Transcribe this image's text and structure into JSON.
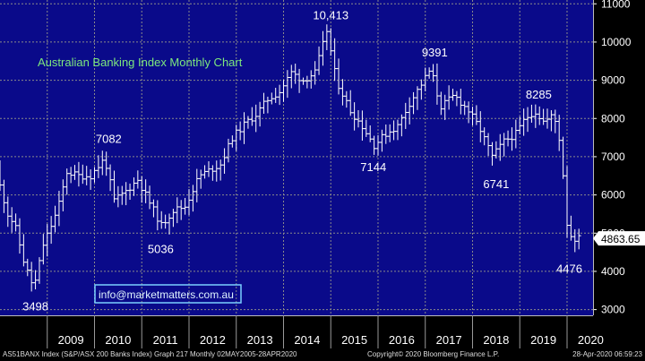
{
  "chart_data": {
    "type": "ohlc",
    "title": "Australian Banking Index Monthly Chart",
    "watermark": "info@marketmatters.com.au",
    "y_ticks": [
      3000,
      4000,
      5000,
      6000,
      7000,
      8000,
      9000,
      10000,
      11000
    ],
    "y_tick_labels": [
      "3000",
      "4000",
      "5000",
      "6000",
      "7000",
      "8000",
      "9000",
      "10000",
      "11000"
    ],
    "ylim": [
      2850,
      11100
    ],
    "years": [
      "2009",
      "2010",
      "2011",
      "2012",
      "2013",
      "2014",
      "2015",
      "2016",
      "2017",
      "2018",
      "2019",
      "2020"
    ],
    "last_price": 4863.65,
    "last_price_label": "4863.65",
    "annotations": [
      {
        "label": "10,413",
        "year": 2015.0,
        "value": 10413
      },
      {
        "label": "9391",
        "year": 2017.2,
        "value": 9391
      },
      {
        "label": "8285",
        "year": 2019.4,
        "value": 8285
      },
      {
        "label": "7082",
        "year": 2010.3,
        "value": 7082
      },
      {
        "label": "7144",
        "year": 2015.9,
        "value": 7144
      },
      {
        "label": "6741",
        "year": 2018.5,
        "value": 6741
      },
      {
        "label": "5036",
        "year": 2011.4,
        "value": 5036
      },
      {
        "label": "3498",
        "year": 2008.75,
        "value": 3498
      },
      {
        "label": "4476",
        "year": 2020.2,
        "value": 4476
      }
    ],
    "series_points": [
      [
        2008.0,
        6600
      ],
      [
        2008.25,
        5500
      ],
      [
        2008.4,
        5200
      ],
      [
        2008.6,
        4200
      ],
      [
        2008.8,
        3550
      ],
      [
        2009.0,
        4700
      ],
      [
        2009.3,
        5600
      ],
      [
        2009.5,
        6600
      ],
      [
        2009.75,
        6500
      ],
      [
        2010.0,
        6500
      ],
      [
        2010.3,
        6950
      ],
      [
        2010.5,
        5850
      ],
      [
        2010.75,
        6100
      ],
      [
        2011.0,
        6400
      ],
      [
        2011.25,
        5800
      ],
      [
        2011.5,
        5200
      ],
      [
        2011.75,
        5600
      ],
      [
        2012.0,
        5700
      ],
      [
        2012.3,
        6500
      ],
      [
        2012.75,
        6800
      ],
      [
        2013.0,
        7500
      ],
      [
        2013.3,
        7900
      ],
      [
        2013.5,
        8100
      ],
      [
        2013.75,
        8500
      ],
      [
        2014.0,
        8700
      ],
      [
        2014.25,
        9200
      ],
      [
        2014.5,
        9000
      ],
      [
        2014.75,
        9200
      ],
      [
        2015.0,
        10300
      ],
      [
        2015.2,
        9000
      ],
      [
        2015.5,
        8200
      ],
      [
        2015.75,
        7800
      ],
      [
        2016.0,
        7300
      ],
      [
        2016.25,
        7600
      ],
      [
        2016.5,
        7800
      ],
      [
        2016.75,
        8400
      ],
      [
        2017.0,
        8900
      ],
      [
        2017.2,
        9300
      ],
      [
        2017.4,
        8300
      ],
      [
        2017.7,
        8600
      ],
      [
        2018.0,
        8200
      ],
      [
        2018.25,
        7700
      ],
      [
        2018.5,
        7000
      ],
      [
        2018.75,
        7400
      ],
      [
        2019.0,
        7600
      ],
      [
        2019.2,
        8000
      ],
      [
        2019.4,
        8200
      ],
      [
        2019.6,
        7900
      ],
      [
        2019.8,
        8100
      ],
      [
        2019.95,
        7300
      ],
      [
        2020.1,
        5000
      ],
      [
        2020.25,
        4860
      ]
    ]
  },
  "footer": {
    "left": "AS51BANX Index (S&P/ASX 200 Banks Index) Graph 217  Monthly 02MAY2005-28APR2020",
    "middle": "Copyright© 2020 Bloomberg Finance L.P.",
    "right": "28-Apr-2020 06:59:23"
  },
  "colors": {
    "background": "#000000",
    "plot_bg": "#0a0a8a",
    "grid": "#8a8a8a",
    "bars": "#ffffff",
    "title": "#7de87d",
    "axis_labels": "#ffffff",
    "price_box_bg": "#ffffff",
    "price_box_text": "#000000"
  }
}
